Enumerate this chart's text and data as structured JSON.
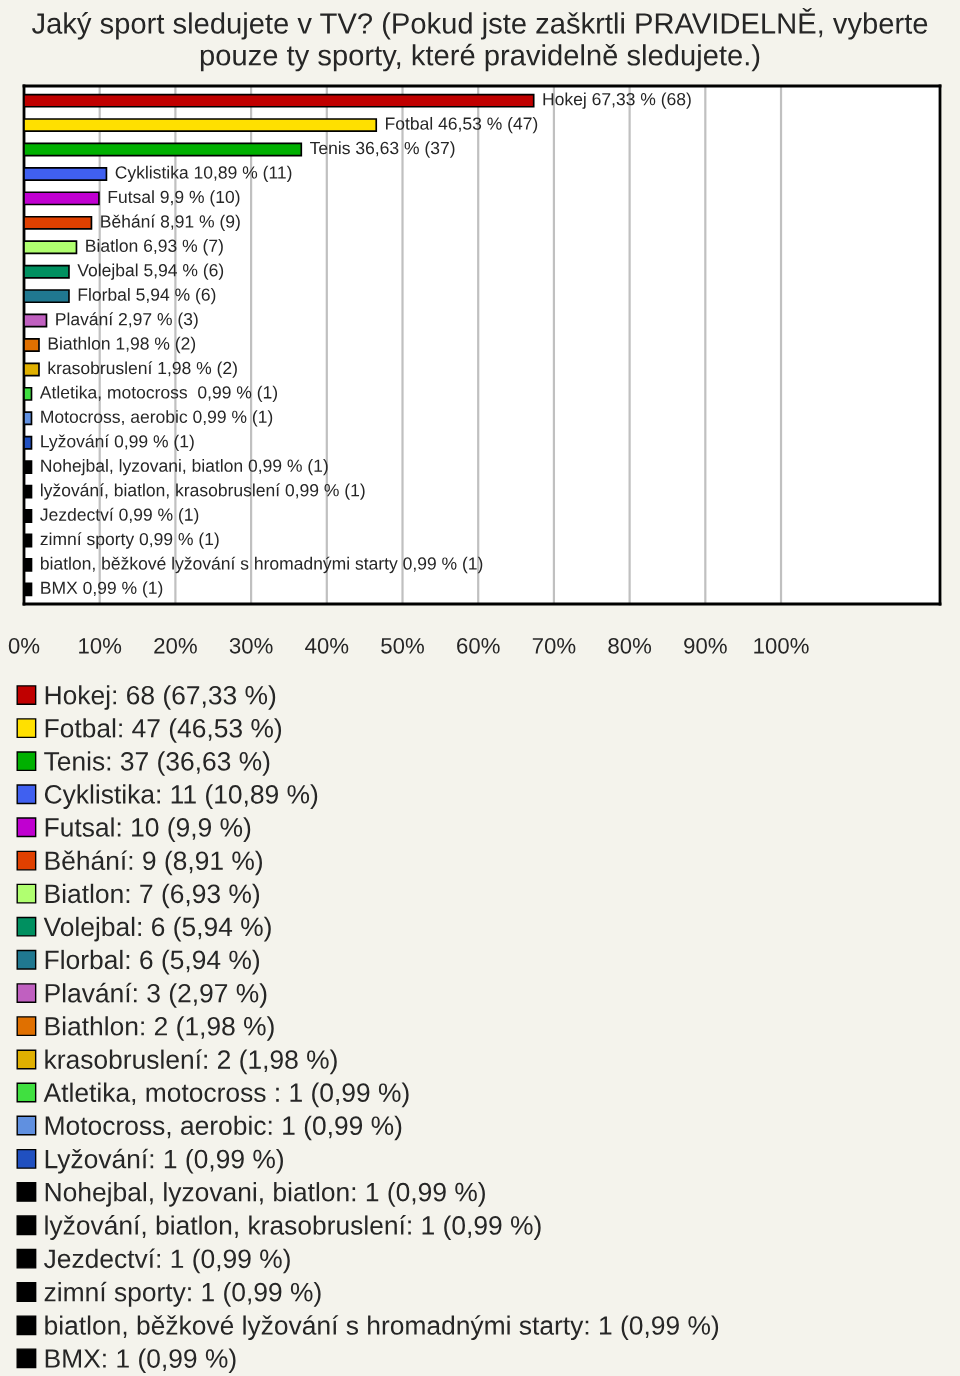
{
  "chart_data": {
    "type": "bar",
    "orientation": "horizontal",
    "title": "Jaký sport sledujete v TV? (Pokud jste zaškrtli PRAVIDELNĚ, vyberte pouze ty sporty, které pravidelně sledujete.)",
    "categories": [
      null,
      null,
      null,
      null,
      null,
      null,
      null,
      null,
      null,
      null,
      null,
      null,
      null,
      null,
      null,
      null,
      null,
      null,
      null,
      null,
      null
    ],
    "series": [
      {
        "name": "Hokej: 68 (67,33 %)",
        "color": "#c00000",
        "values": [
          67.33,
          null,
          null,
          null,
          null,
          null,
          null,
          null,
          null,
          null,
          null,
          null,
          null,
          null,
          null,
          null,
          null,
          null,
          null,
          null,
          null
        ],
        "value_labels": [
          "Hokej 67,33 % (68)",
          null,
          null,
          null,
          null,
          null,
          null,
          null,
          null,
          null,
          null,
          null,
          null,
          null,
          null,
          null,
          null,
          null,
          null,
          null,
          null
        ]
      },
      {
        "name": "Fotbal: 47 (46,53 %)",
        "color": "#ffe000",
        "values": [
          null,
          46.53,
          null,
          null,
          null,
          null,
          null,
          null,
          null,
          null,
          null,
          null,
          null,
          null,
          null,
          null,
          null,
          null,
          null,
          null,
          null
        ],
        "value_labels": [
          null,
          "Fotbal 46,53 % (47)",
          null,
          null,
          null,
          null,
          null,
          null,
          null,
          null,
          null,
          null,
          null,
          null,
          null,
          null,
          null,
          null,
          null,
          null,
          null
        ]
      },
      {
        "name": "Tenis: 37 (36,63 %)",
        "color": "#00b000",
        "values": [
          null,
          null,
          36.63,
          null,
          null,
          null,
          null,
          null,
          null,
          null,
          null,
          null,
          null,
          null,
          null,
          null,
          null,
          null,
          null,
          null,
          null
        ],
        "value_labels": [
          null,
          null,
          "Tenis 36,63 % (37)",
          null,
          null,
          null,
          null,
          null,
          null,
          null,
          null,
          null,
          null,
          null,
          null,
          null,
          null,
          null,
          null,
          null,
          null
        ]
      },
      {
        "name": "Cyklistika: 11 (10,89 %)",
        "color": "#4060f0",
        "values": [
          null,
          null,
          null,
          10.89,
          null,
          null,
          null,
          null,
          null,
          null,
          null,
          null,
          null,
          null,
          null,
          null,
          null,
          null,
          null,
          null,
          null
        ],
        "value_labels": [
          null,
          null,
          null,
          "Cyklistika 10,89 % (11)",
          null,
          null,
          null,
          null,
          null,
          null,
          null,
          null,
          null,
          null,
          null,
          null,
          null,
          null,
          null,
          null,
          null
        ]
      },
      {
        "name": "Futsal: 10 (9,9 %)",
        "color": "#c000d0",
        "values": [
          null,
          null,
          null,
          null,
          9.9,
          null,
          null,
          null,
          null,
          null,
          null,
          null,
          null,
          null,
          null,
          null,
          null,
          null,
          null,
          null,
          null
        ],
        "value_labels": [
          null,
          null,
          null,
          null,
          "Futsal 9,9 % (10)",
          null,
          null,
          null,
          null,
          null,
          null,
          null,
          null,
          null,
          null,
          null,
          null,
          null,
          null,
          null,
          null
        ]
      },
      {
        "name": "Běhání: 9 (8,91 %)",
        "color": "#e04000",
        "values": [
          null,
          null,
          null,
          null,
          null,
          8.91,
          null,
          null,
          null,
          null,
          null,
          null,
          null,
          null,
          null,
          null,
          null,
          null,
          null,
          null,
          null
        ],
        "value_labels": [
          null,
          null,
          null,
          null,
          null,
          "Běhání 8,91 % (9)",
          null,
          null,
          null,
          null,
          null,
          null,
          null,
          null,
          null,
          null,
          null,
          null,
          null,
          null,
          null
        ]
      },
      {
        "name": "Biatlon: 7 (6,93 %)",
        "color": "#b0ff70",
        "values": [
          null,
          null,
          null,
          null,
          null,
          null,
          6.93,
          null,
          null,
          null,
          null,
          null,
          null,
          null,
          null,
          null,
          null,
          null,
          null,
          null,
          null
        ],
        "value_labels": [
          null,
          null,
          null,
          null,
          null,
          null,
          "Biatlon 6,93 % (7)",
          null,
          null,
          null,
          null,
          null,
          null,
          null,
          null,
          null,
          null,
          null,
          null,
          null,
          null
        ]
      },
      {
        "name": "Volejbal: 6 (5,94 %)",
        "color": "#009060",
        "values": [
          null,
          null,
          null,
          null,
          null,
          null,
          null,
          5.94,
          null,
          null,
          null,
          null,
          null,
          null,
          null,
          null,
          null,
          null,
          null,
          null,
          null
        ],
        "value_labels": [
          null,
          null,
          null,
          null,
          null,
          null,
          null,
          "Volejbal 5,94 % (6)",
          null,
          null,
          null,
          null,
          null,
          null,
          null,
          null,
          null,
          null,
          null,
          null,
          null
        ]
      },
      {
        "name": "Florbal: 6 (5,94 %)",
        "color": "#207890",
        "values": [
          null,
          null,
          null,
          null,
          null,
          null,
          null,
          null,
          5.94,
          null,
          null,
          null,
          null,
          null,
          null,
          null,
          null,
          null,
          null,
          null,
          null
        ],
        "value_labels": [
          null,
          null,
          null,
          null,
          null,
          null,
          null,
          null,
          "Florbal 5,94 % (6)",
          null,
          null,
          null,
          null,
          null,
          null,
          null,
          null,
          null,
          null,
          null,
          null
        ]
      },
      {
        "name": "Plavání: 3 (2,97 %)",
        "color": "#c060c0",
        "values": [
          null,
          null,
          null,
          null,
          null,
          null,
          null,
          null,
          null,
          2.97,
          null,
          null,
          null,
          null,
          null,
          null,
          null,
          null,
          null,
          null,
          null
        ],
        "value_labels": [
          null,
          null,
          null,
          null,
          null,
          null,
          null,
          null,
          null,
          "Plavání 2,97 % (3)",
          null,
          null,
          null,
          null,
          null,
          null,
          null,
          null,
          null,
          null,
          null
        ]
      },
      {
        "name": "Biathlon: 2 (1,98 %)",
        "color": "#e07000",
        "values": [
          null,
          null,
          null,
          null,
          null,
          null,
          null,
          null,
          null,
          null,
          1.98,
          null,
          null,
          null,
          null,
          null,
          null,
          null,
          null,
          null,
          null
        ],
        "value_labels": [
          null,
          null,
          null,
          null,
          null,
          null,
          null,
          null,
          null,
          null,
          "Biathlon 1,98 % (2)",
          null,
          null,
          null,
          null,
          null,
          null,
          null,
          null,
          null,
          null
        ]
      },
      {
        "name": "krasobruslení: 2 (1,98 %)",
        "color": "#e0b000",
        "values": [
          null,
          null,
          null,
          null,
          null,
          null,
          null,
          null,
          null,
          null,
          null,
          1.98,
          null,
          null,
          null,
          null,
          null,
          null,
          null,
          null,
          null
        ],
        "value_labels": [
          null,
          null,
          null,
          null,
          null,
          null,
          null,
          null,
          null,
          null,
          null,
          "krasobruslení 1,98 % (2)",
          null,
          null,
          null,
          null,
          null,
          null,
          null,
          null,
          null
        ]
      },
      {
        "name": "Atletika, motocross : 1 (0,99 %)",
        "color": "#40e040",
        "values": [
          null,
          null,
          null,
          null,
          null,
          null,
          null,
          null,
          null,
          null,
          null,
          null,
          0.99,
          null,
          null,
          null,
          null,
          null,
          null,
          null,
          null
        ],
        "value_labels": [
          null,
          null,
          null,
          null,
          null,
          null,
          null,
          null,
          null,
          null,
          null,
          null,
          "Atletika, motocross  0,99 % (1)",
          null,
          null,
          null,
          null,
          null,
          null,
          null,
          null
        ]
      },
      {
        "name": "Motocross, aerobic: 1 (0,99 %)",
        "color": "#6090e0",
        "values": [
          null,
          null,
          null,
          null,
          null,
          null,
          null,
          null,
          null,
          null,
          null,
          null,
          null,
          0.99,
          null,
          null,
          null,
          null,
          null,
          null,
          null
        ],
        "value_labels": [
          null,
          null,
          null,
          null,
          null,
          null,
          null,
          null,
          null,
          null,
          null,
          null,
          null,
          "Motocross, aerobic 0,99 % (1)",
          null,
          null,
          null,
          null,
          null,
          null,
          null
        ]
      },
      {
        "name": "Lyžování: 1 (0,99 %)",
        "color": "#2050c0",
        "values": [
          null,
          null,
          null,
          null,
          null,
          null,
          null,
          null,
          null,
          null,
          null,
          null,
          null,
          null,
          0.99,
          null,
          null,
          null,
          null,
          null,
          null
        ],
        "value_labels": [
          null,
          null,
          null,
          null,
          null,
          null,
          null,
          null,
          null,
          null,
          null,
          null,
          null,
          null,
          "Lyžování 0,99 % (1)",
          null,
          null,
          null,
          null,
          null,
          null
        ]
      },
      {
        "name": "Nohejbal, lyzovani, biatlon: 1 (0,99 %)",
        "color": "#000000",
        "values": [
          null,
          null,
          null,
          null,
          null,
          null,
          null,
          null,
          null,
          null,
          null,
          null,
          null,
          null,
          null,
          0.99,
          null,
          null,
          null,
          null,
          null
        ],
        "value_labels": [
          null,
          null,
          null,
          null,
          null,
          null,
          null,
          null,
          null,
          null,
          null,
          null,
          null,
          null,
          null,
          "Nohejbal, lyzovani, biatlon 0,99 % (1)",
          null,
          null,
          null,
          null,
          null
        ]
      },
      {
        "name": "lyžování, biatlon, krasobruslení: 1 (0,99 %)",
        "color": "#000000",
        "values": [
          null,
          null,
          null,
          null,
          null,
          null,
          null,
          null,
          null,
          null,
          null,
          null,
          null,
          null,
          null,
          null,
          0.99,
          null,
          null,
          null,
          null
        ],
        "value_labels": [
          null,
          null,
          null,
          null,
          null,
          null,
          null,
          null,
          null,
          null,
          null,
          null,
          null,
          null,
          null,
          null,
          "lyžování, biatlon, krasobruslení 0,99 % (1)",
          null,
          null,
          null,
          null
        ]
      },
      {
        "name": "Jezdectví: 1 (0,99 %)",
        "color": "#000000",
        "values": [
          null,
          null,
          null,
          null,
          null,
          null,
          null,
          null,
          null,
          null,
          null,
          null,
          null,
          null,
          null,
          null,
          null,
          0.99,
          null,
          null,
          null
        ],
        "value_labels": [
          null,
          null,
          null,
          null,
          null,
          null,
          null,
          null,
          null,
          null,
          null,
          null,
          null,
          null,
          null,
          null,
          null,
          "Jezdectví 0,99 % (1)",
          null,
          null,
          null
        ]
      },
      {
        "name": "zimní sporty: 1 (0,99 %)",
        "color": "#000000",
        "values": [
          null,
          null,
          null,
          null,
          null,
          null,
          null,
          null,
          null,
          null,
          null,
          null,
          null,
          null,
          null,
          null,
          null,
          null,
          0.99,
          null,
          null
        ],
        "value_labels": [
          null,
          null,
          null,
          null,
          null,
          null,
          null,
          null,
          null,
          null,
          null,
          null,
          null,
          null,
          null,
          null,
          null,
          null,
          "zimní sporty 0,99 % (1)",
          null,
          null
        ]
      },
      {
        "name": "biatlon, běžkové lyžování s hromadnými starty: 1 (0,99 %)",
        "color": "#000000",
        "values": [
          null,
          null,
          null,
          null,
          null,
          null,
          null,
          null,
          null,
          null,
          null,
          null,
          null,
          null,
          null,
          null,
          null,
          null,
          null,
          0.99,
          null
        ],
        "value_labels": [
          null,
          null,
          null,
          null,
          null,
          null,
          null,
          null,
          null,
          null,
          null,
          null,
          null,
          null,
          null,
          null,
          null,
          null,
          null,
          "biatlon, běžkové lyžování s hromadnými starty 0,99 % (1)",
          null
        ]
      },
      {
        "name": "BMX: 1 (0,99 %)",
        "color": "#000000",
        "values": [
          null,
          null,
          null,
          null,
          null,
          null,
          null,
          null,
          null,
          null,
          null,
          null,
          null,
          null,
          null,
          null,
          null,
          null,
          null,
          null,
          0.99
        ],
        "value_labels": [
          null,
          null,
          null,
          null,
          null,
          null,
          null,
          null,
          null,
          null,
          null,
          null,
          null,
          null,
          null,
          null,
          null,
          null,
          null,
          null,
          "BMX 0,99 % (1)"
        ]
      }
    ],
    "xlim": [
      0,
      121
    ],
    "xticks": [
      {
        "value": 0,
        "label": "0%"
      },
      {
        "value": 10,
        "label": "10%"
      },
      {
        "value": 20,
        "label": "20%"
      },
      {
        "value": 30,
        "label": "30%"
      },
      {
        "value": 40,
        "label": "40%"
      },
      {
        "value": 50,
        "label": "50%"
      },
      {
        "value": 60,
        "label": "60%"
      },
      {
        "value": 70,
        "label": "70%"
      },
      {
        "value": 80,
        "label": "80%"
      },
      {
        "value": 90,
        "label": "90%"
      },
      {
        "value": 100,
        "label": "100%"
      }
    ],
    "grid": "x",
    "legend": "bottom",
    "tick_labels": "x"
  }
}
